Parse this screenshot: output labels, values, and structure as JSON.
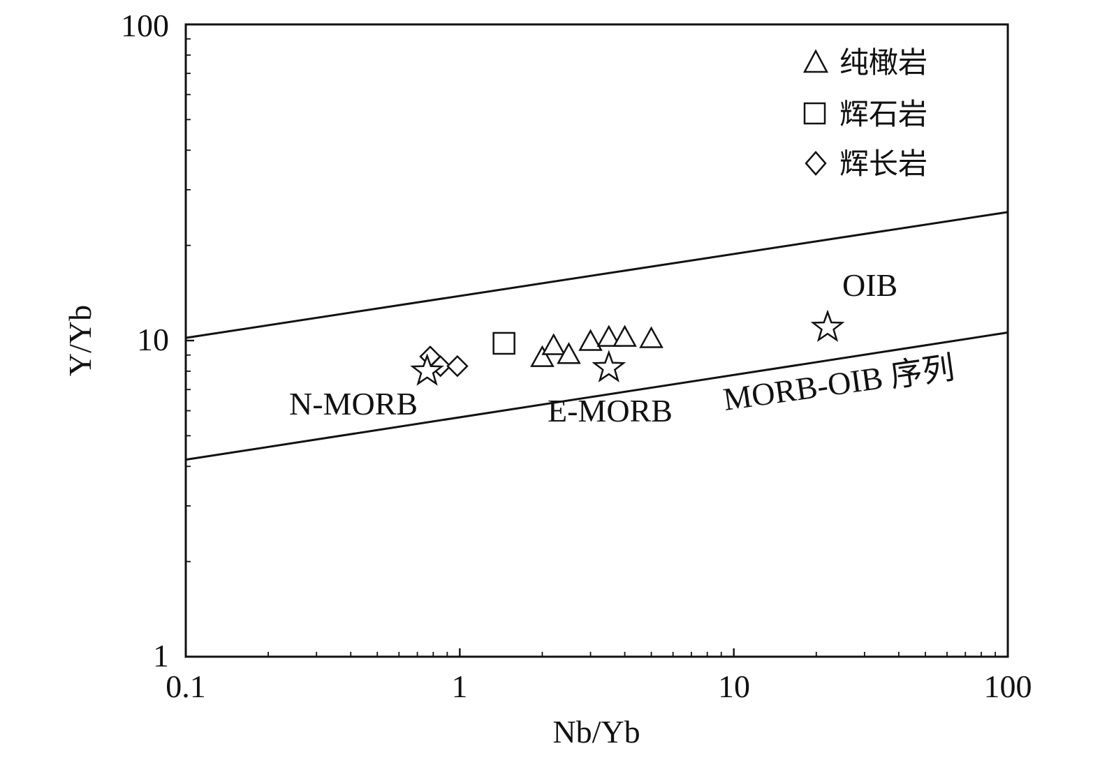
{
  "chart_data": {
    "type": "scatter",
    "xlabel": "Nb/Yb",
    "ylabel": "Y/Yb",
    "xscale": "log",
    "yscale": "log",
    "xlim": [
      0.1,
      100
    ],
    "ylim": [
      1,
      100
    ],
    "x_ticks": [
      {
        "value": 0.1,
        "label": "0.1"
      },
      {
        "value": 1,
        "label": "1"
      },
      {
        "value": 10,
        "label": "10"
      },
      {
        "value": 100,
        "label": "100"
      }
    ],
    "y_ticks": [
      {
        "value": 1,
        "label": "1"
      },
      {
        "value": 10,
        "label": "10"
      },
      {
        "value": 100,
        "label": "100"
      }
    ],
    "grid": false,
    "legend_position": "top-right",
    "series": [
      {
        "name": "纯橄岩",
        "marker": "triangle",
        "points": [
          {
            "x": 2.0,
            "y": 8.8
          },
          {
            "x": 2.2,
            "y": 9.6
          },
          {
            "x": 2.5,
            "y": 9.0
          },
          {
            "x": 3.0,
            "y": 9.9
          },
          {
            "x": 3.5,
            "y": 10.2
          },
          {
            "x": 4.0,
            "y": 10.2
          },
          {
            "x": 5.0,
            "y": 10.1
          }
        ]
      },
      {
        "name": "辉石岩",
        "marker": "square",
        "points": [
          {
            "x": 1.45,
            "y": 9.8
          }
        ]
      },
      {
        "name": "辉长岩",
        "marker": "diamond",
        "points": [
          {
            "x": 0.78,
            "y": 8.9
          },
          {
            "x": 0.85,
            "y": 8.3
          },
          {
            "x": 0.98,
            "y": 8.3
          }
        ]
      }
    ],
    "reference_points": [
      {
        "label": "N-MORB",
        "x": 0.76,
        "y": 8.0
      },
      {
        "label": "E-MORB",
        "x": 3.5,
        "y": 8.2
      },
      {
        "label": "OIB",
        "x": 22,
        "y": 11.0
      }
    ],
    "boundary_lines": [
      {
        "x": [
          0.1,
          100
        ],
        "y": [
          10.2,
          25.5
        ]
      },
      {
        "x": [
          0.1,
          100
        ],
        "y": [
          4.2,
          10.6
        ],
        "label": "MORB-OIB 序列"
      }
    ]
  },
  "style": {
    "line_color": "#111111",
    "marker_fill": "#ffffff"
  }
}
